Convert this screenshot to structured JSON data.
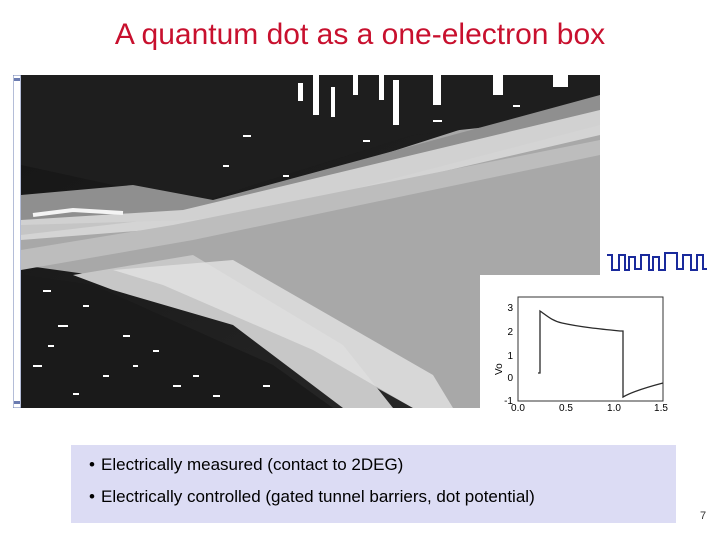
{
  "slide": {
    "title": "A quantum dot as a one-electron box",
    "page_number": "7"
  },
  "bullets": [
    {
      "bullet": "•",
      "text": "Electrically measured (contact to 2DEG)"
    },
    {
      "bullet": "•",
      "text": "Electrically controlled (gated tunnel barriers, dot potential)"
    }
  ],
  "inset_chart": {
    "y_ticks": [
      "3",
      "2",
      "1",
      "0",
      "-1"
    ],
    "x_ticks": [
      "0.0",
      "0.5",
      "1.0",
      "1.5"
    ],
    "ylabel_fragment": "Vo",
    "curve_color": "#2a2a2a"
  },
  "colors": {
    "title": "#c8102e",
    "bullet_box": "#dcdcf4",
    "trace": "#1a2a9c"
  }
}
